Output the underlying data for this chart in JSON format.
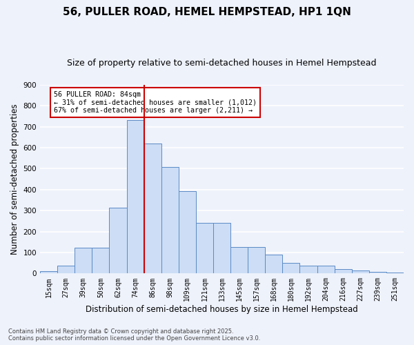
{
  "title": "56, PULLER ROAD, HEMEL HEMPSTEAD, HP1 1QN",
  "subtitle": "Size of property relative to semi-detached houses in Hemel Hempstead",
  "xlabel": "Distribution of semi-detached houses by size in Hemel Hempstead",
  "ylabel": "Number of semi-detached properties",
  "footer": "Contains HM Land Registry data © Crown copyright and database right 2025.\nContains public sector information licensed under the Open Government Licence v3.0.",
  "bins": [
    "15sqm",
    "27sqm",
    "39sqm",
    "50sqm",
    "62sqm",
    "74sqm",
    "86sqm",
    "98sqm",
    "109sqm",
    "121sqm",
    "133sqm",
    "145sqm",
    "157sqm",
    "168sqm",
    "180sqm",
    "192sqm",
    "204sqm",
    "216sqm",
    "227sqm",
    "239sqm",
    "251sqm"
  ],
  "bar_values": [
    12,
    38,
    122,
    122,
    315,
    730,
    620,
    507,
    393,
    240,
    240,
    125,
    125,
    90,
    52,
    37,
    37,
    20,
    13,
    7,
    5
  ],
  "bar_color": "#ccddf5",
  "bar_edge_color": "#5a8ac6",
  "vline_x": 5.5,
  "vline_color": "#cc0000",
  "annotation_title": "56 PULLER ROAD: 84sqm",
  "annotation_line1": "← 31% of semi-detached houses are smaller (1,012)",
  "annotation_line2": "67% of semi-detached houses are larger (2,211) →",
  "annotation_box_color": "#cc0000",
  "ylim": [
    0,
    900
  ],
  "yticks": [
    0,
    100,
    200,
    300,
    400,
    500,
    600,
    700,
    800,
    900
  ],
  "background_color": "#eef2fb",
  "plot_bg_color": "#eef2fb",
  "grid_color": "#ffffff",
  "title_fontsize": 11,
  "subtitle_fontsize": 9,
  "tick_fontsize": 7,
  "xlabel_fontsize": 8.5,
  "ylabel_fontsize": 8.5,
  "footer_fontsize": 6
}
